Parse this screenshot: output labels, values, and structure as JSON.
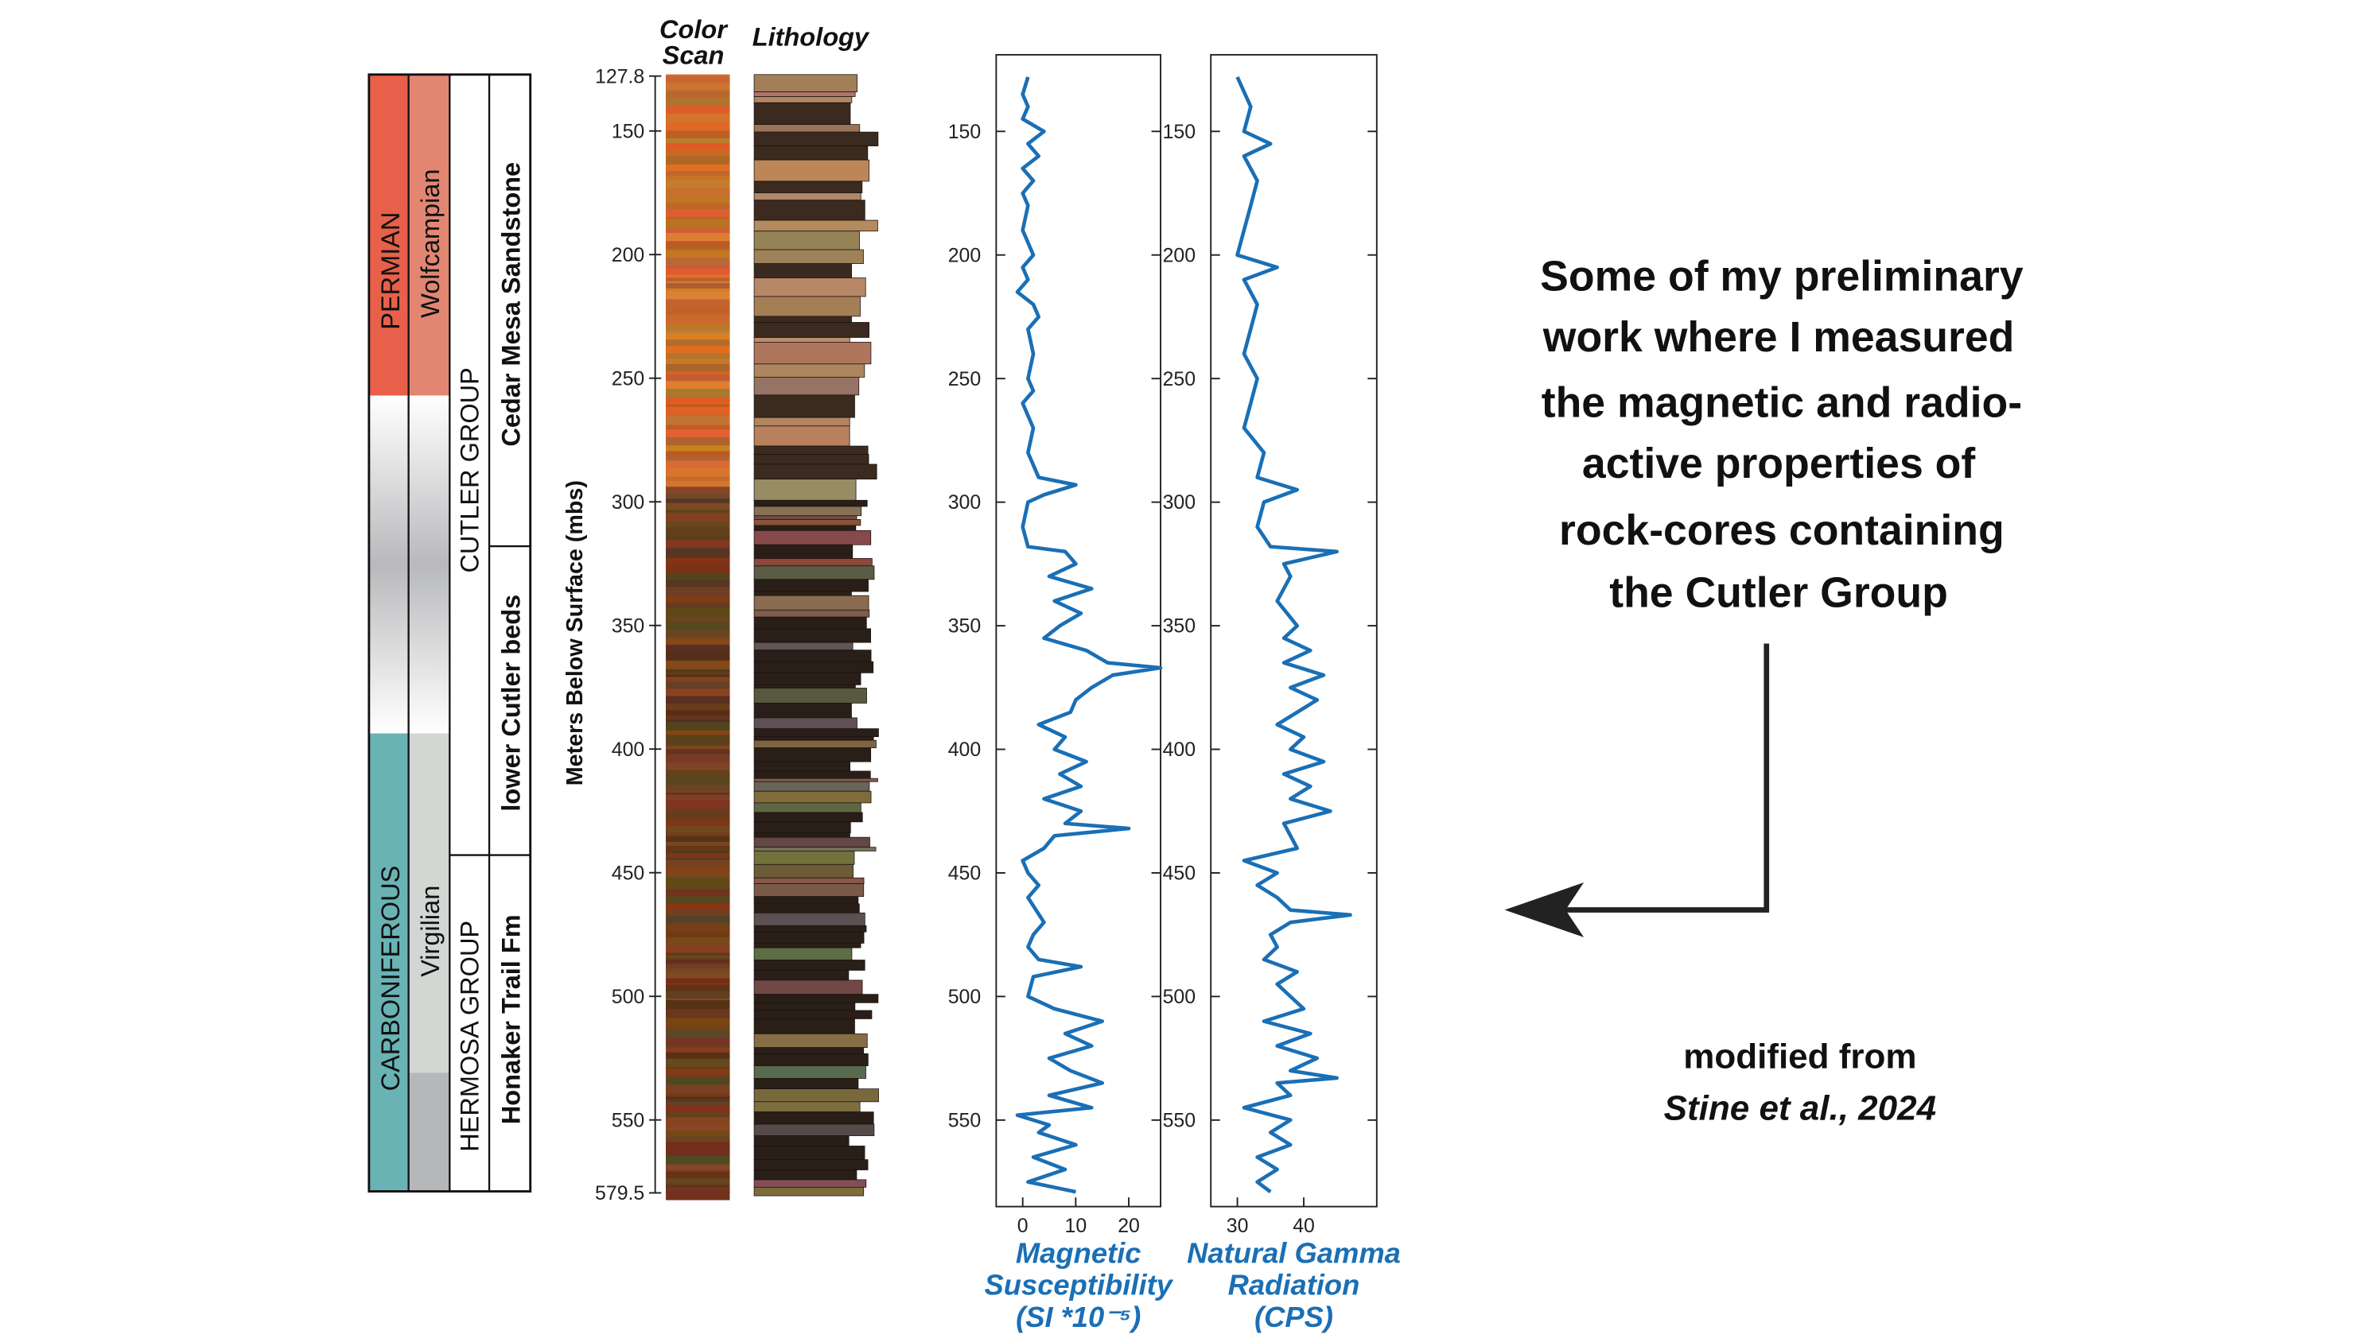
{
  "strat_column": {
    "period_upper": "PERMIAN",
    "stage_upper": "Wolfcampian",
    "period_lower": "CARBONIFEROUS",
    "stage_lower": "Virgilian",
    "group_upper": "CUTLER GROUP",
    "group_lower": "HERMOSA GROUP",
    "formations": [
      "Cedar Mesa Sandstone",
      "lower Cutler beds",
      "Honaker Trail Fm"
    ]
  },
  "depth_axis": {
    "title": "Meters Below Surface (mbs)",
    "lim": [
      127.8,
      579.5
    ],
    "ticks": [
      127.8,
      150,
      200,
      250,
      300,
      350,
      400,
      450,
      500,
      550,
      579.5
    ]
  },
  "core_columns": {
    "color_scan": [
      "Color",
      "Scan"
    ],
    "lithology": "Lithology"
  },
  "chart_data": [
    {
      "type": "line",
      "orientation": "vertical",
      "xlabel": [
        "Magnetic",
        "Susceptibility",
        "(SI *10⁻⁵)"
      ],
      "color": "#1a6fb5",
      "xlim": [
        -5,
        26
      ],
      "xticks": [
        0,
        10,
        20
      ],
      "ylim": [
        119,
        585
      ],
      "yticks": [
        150,
        200,
        250,
        300,
        350,
        400,
        450,
        500,
        550
      ],
      "depth": [
        128,
        135,
        140,
        145,
        150,
        155,
        160,
        165,
        170,
        175,
        180,
        190,
        200,
        205,
        210,
        215,
        220,
        225,
        230,
        240,
        250,
        255,
        260,
        270,
        280,
        290,
        293,
        297,
        300,
        310,
        318,
        320,
        325,
        330,
        335,
        340,
        345,
        350,
        355,
        360,
        365,
        367,
        370,
        375,
        380,
        385,
        390,
        395,
        400,
        405,
        410,
        415,
        420,
        425,
        430,
        432,
        435,
        440,
        445,
        450,
        455,
        460,
        470,
        475,
        480,
        485,
        488,
        492,
        500,
        505,
        510,
        515,
        520,
        525,
        530,
        535,
        540,
        545,
        548,
        552,
        555,
        560,
        565,
        570,
        575,
        579
      ],
      "values": [
        1,
        0,
        1,
        0,
        4,
        1,
        3,
        0,
        2,
        0,
        1,
        0,
        2,
        0,
        1,
        -1,
        2,
        3,
        1,
        2,
        1,
        2,
        0,
        2,
        1,
        3,
        10,
        4,
        1,
        0,
        1,
        8,
        10,
        5,
        13,
        6,
        11,
        7,
        4,
        12,
        16,
        26,
        17,
        13,
        10,
        9,
        3,
        8,
        6,
        12,
        7,
        11,
        4,
        11,
        8,
        20,
        6,
        4,
        0,
        1,
        3,
        1,
        4,
        2,
        1,
        3,
        11,
        2,
        1,
        6,
        15,
        8,
        13,
        5,
        9,
        15,
        5,
        13,
        -1,
        5,
        3,
        10,
        2,
        8,
        1,
        10
      ]
    },
    {
      "type": "line",
      "orientation": "vertical",
      "xlabel": [
        "Natural Gamma",
        "Radiation",
        "(CPS)"
      ],
      "color": "#1a6fb5",
      "xlim": [
        26,
        51
      ],
      "xticks": [
        30,
        40
      ],
      "ylim": [
        119,
        585
      ],
      "yticks": [
        150,
        200,
        250,
        300,
        350,
        400,
        450,
        500,
        550
      ],
      "depth": [
        128,
        140,
        150,
        155,
        160,
        170,
        180,
        190,
        200,
        205,
        210,
        220,
        230,
        240,
        250,
        260,
        270,
        280,
        290,
        295,
        300,
        310,
        318,
        320,
        325,
        330,
        340,
        350,
        355,
        360,
        365,
        370,
        375,
        380,
        390,
        395,
        400,
        405,
        410,
        415,
        420,
        425,
        430,
        440,
        445,
        450,
        455,
        460,
        465,
        467,
        470,
        475,
        480,
        485,
        490,
        495,
        500,
        505,
        510,
        515,
        520,
        525,
        530,
        533,
        535,
        540,
        545,
        550,
        555,
        560,
        565,
        570,
        575,
        579
      ],
      "values": [
        30,
        32,
        31,
        35,
        31,
        33,
        32,
        31,
        30,
        36,
        31,
        33,
        32,
        31,
        33,
        32,
        31,
        34,
        33,
        39,
        34,
        33,
        35,
        45,
        37,
        38,
        36,
        39,
        37,
        41,
        37,
        43,
        38,
        42,
        36,
        40,
        38,
        43,
        37,
        41,
        38,
        44,
        37,
        39,
        31,
        36,
        33,
        36,
        38,
        47,
        38,
        35,
        36,
        34,
        39,
        36,
        38,
        40,
        34,
        41,
        36,
        42,
        38,
        45,
        36,
        38,
        31,
        38,
        35,
        38,
        33,
        36,
        33,
        35
      ]
    }
  ],
  "slide_text": {
    "lines": [
      "Some of my preliminary",
      "work where I measured",
      "the magnetic and radio-",
      "active properties of",
      "rock-cores containing",
      "the Cutler Group"
    ],
    "credit": "modified from",
    "citation": "Stine et al., 2024"
  }
}
